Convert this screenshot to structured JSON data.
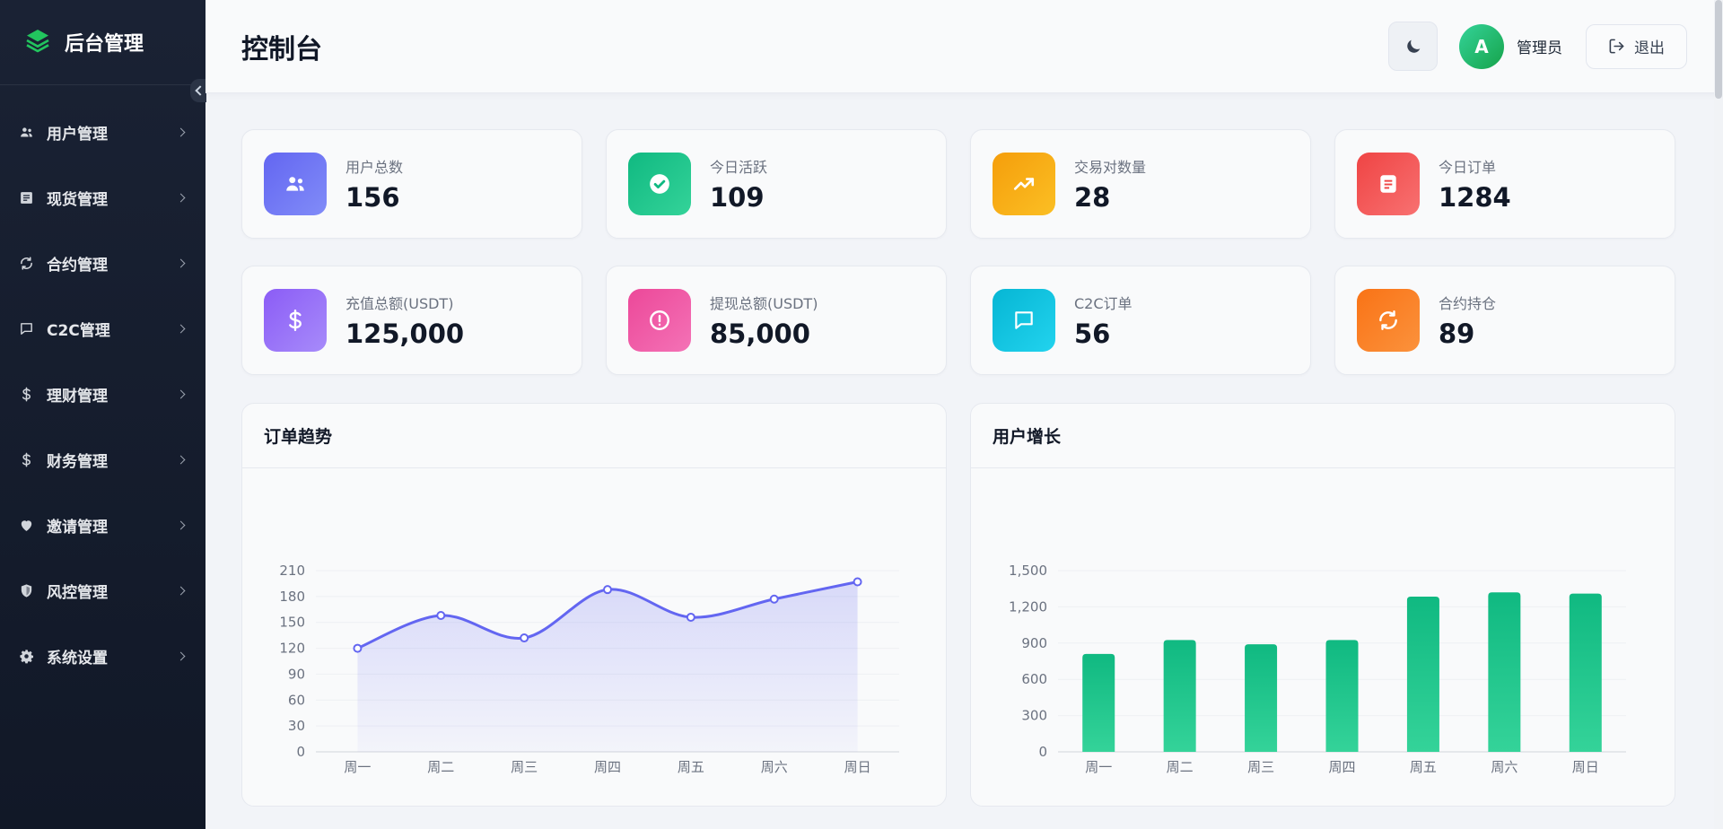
{
  "sidebar": {
    "brand": "后台管理",
    "items": [
      {
        "label": "用户管理",
        "icon": "users-icon"
      },
      {
        "label": "现货管理",
        "icon": "list-icon"
      },
      {
        "label": "合约管理",
        "icon": "refresh-icon"
      },
      {
        "label": "C2C管理",
        "icon": "message-icon"
      },
      {
        "label": "理财管理",
        "icon": "dollar-icon"
      },
      {
        "label": "财务管理",
        "icon": "dollar-icon"
      },
      {
        "label": "邀请管理",
        "icon": "heart-icon"
      },
      {
        "label": "风控管理",
        "icon": "shield-icon"
      },
      {
        "label": "系统设置",
        "icon": "gear-icon"
      }
    ]
  },
  "header": {
    "title": "控制台",
    "avatar_letter": "A",
    "user_name": "管理员",
    "logout_label": "退出"
  },
  "stats": [
    {
      "label": "用户总数",
      "value": "156",
      "icon": "users-icon",
      "color_from": "#6366f1",
      "color_to": "#818cf8"
    },
    {
      "label": "今日活跃",
      "value": "109",
      "icon": "check-circle-icon",
      "color_from": "#10b981",
      "color_to": "#34d399"
    },
    {
      "label": "交易对数量",
      "value": "28",
      "icon": "trend-icon",
      "color_from": "#f59e0b",
      "color_to": "#fbbf24"
    },
    {
      "label": "今日订单",
      "value": "1284",
      "icon": "document-icon",
      "color_from": "#ef4444",
      "color_to": "#f87171"
    },
    {
      "label": "充值总额(USDT)",
      "value": "125,000",
      "icon": "dollar-icon",
      "color_from": "#8b5cf6",
      "color_to": "#a78bfa"
    },
    {
      "label": "提现总额(USDT)",
      "value": "85,000",
      "icon": "alert-circle-icon",
      "color_from": "#ec4899",
      "color_to": "#f472b6"
    },
    {
      "label": "C2C订单",
      "value": "56",
      "icon": "message-icon",
      "color_from": "#06b6d4",
      "color_to": "#22d3ee"
    },
    {
      "label": "合约持仓",
      "value": "89",
      "icon": "refresh-icon",
      "color_from": "#f97316",
      "color_to": "#fb923c"
    }
  ],
  "chart_data": [
    {
      "type": "line",
      "title": "订单趋势",
      "categories": [
        "周一",
        "周二",
        "周三",
        "周四",
        "周五",
        "周六",
        "周日"
      ],
      "values": [
        120,
        158,
        132,
        188,
        156,
        177,
        197
      ],
      "y_ticks": [
        "0",
        "30",
        "60",
        "90",
        "120",
        "150",
        "180",
        "210"
      ],
      "ylim": [
        0,
        210
      ],
      "smooth": true,
      "area_fill": true,
      "color": "#6366f1",
      "grid": true
    },
    {
      "type": "bar",
      "title": "用户增长",
      "categories": [
        "周一",
        "周二",
        "周三",
        "周四",
        "周五",
        "周六",
        "周日"
      ],
      "values": [
        810,
        925,
        890,
        925,
        1285,
        1320,
        1310
      ],
      "y_ticks": [
        "0",
        "300",
        "600",
        "900",
        "1,200",
        "1,500"
      ],
      "ylim": [
        0,
        1500
      ],
      "color": "#10b981",
      "grid": true
    }
  ]
}
